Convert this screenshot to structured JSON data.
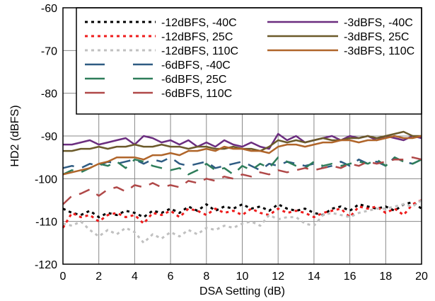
{
  "chart_data": {
    "type": "line",
    "title": "",
    "xlabel": "DSA Setting (dB)",
    "ylabel": "HD2 (dBFS)",
    "xlim": [
      0,
      20
    ],
    "ylim": [
      -120,
      -60
    ],
    "xticks": [
      "0",
      "2",
      "4",
      "6",
      "8",
      "10",
      "12",
      "14",
      "16",
      "18",
      "20"
    ],
    "yticks": [
      "-60",
      "-70",
      "-80",
      "-90",
      "-100",
      "-110",
      "-120"
    ],
    "grid": true,
    "legend_position": "top-right",
    "series": [
      {
        "name": "-12dBFS, -40C",
        "color": "#000000",
        "dash": "dotted",
        "x": [
          0,
          0.5,
          1,
          1.5,
          2,
          2.5,
          3,
          3.5,
          4,
          4.5,
          5,
          5.5,
          6,
          6.5,
          7,
          7.5,
          8,
          8.5,
          9,
          9.5,
          10,
          10.5,
          11,
          11.5,
          12,
          12.5,
          13,
          13.5,
          14,
          14.5,
          15,
          15.5,
          16,
          16.5,
          17,
          17.5,
          18,
          18.5,
          19,
          19.5,
          20
        ],
        "y": [
          -107,
          -108,
          -108.5,
          -107.5,
          -109,
          -108,
          -108.5,
          -107.5,
          -108,
          -109,
          -107.5,
          -108,
          -107,
          -108,
          -106.5,
          -107.5,
          -106,
          -107.5,
          -106.5,
          -107,
          -106,
          -107,
          -106.5,
          -107.5,
          -106,
          -107,
          -107.5,
          -107,
          -108,
          -108.5,
          -107,
          -106.5,
          -107.5,
          -106,
          -106.5,
          -107,
          -106.5,
          -107.5,
          -106,
          -105.5,
          -107
        ]
      },
      {
        "name": "-12dBFS, 25C",
        "color": "#ee1c1c",
        "dash": "dotted",
        "x": [
          0,
          0.5,
          1,
          1.5,
          2,
          2.5,
          3,
          3.5,
          4,
          4.5,
          5,
          5.5,
          6,
          6.5,
          7,
          7.5,
          8,
          8.5,
          9,
          9.5,
          10,
          10.5,
          11,
          11.5,
          12,
          12.5,
          13,
          13.5,
          14,
          14.5,
          15,
          15.5,
          16,
          16.5,
          17,
          17.5,
          18,
          18.5,
          19,
          19.5,
          20
        ],
        "y": [
          -111.5,
          -108,
          -109,
          -108.5,
          -110,
          -108.5,
          -108,
          -109,
          -108.5,
          -110.5,
          -108,
          -108.5,
          -107.5,
          -109,
          -107,
          -107.5,
          -108.5,
          -107,
          -108,
          -107.5,
          -108.5,
          -107,
          -108,
          -108.5,
          -107,
          -108,
          -107.5,
          -108,
          -109,
          -108,
          -107.5,
          -107,
          -109,
          -106.5,
          -107,
          -106.5,
          -108,
          -107,
          -108.5,
          -106,
          -105
        ]
      },
      {
        "name": "-12dBFS, 110C",
        "color": "#c0c0c0",
        "dash": "dotted",
        "x": [
          0,
          0.5,
          1,
          1.5,
          2,
          2.5,
          3,
          3.5,
          4,
          4.5,
          5,
          5.5,
          6,
          6.5,
          7,
          7.5,
          8,
          8.5,
          9,
          9.5,
          10,
          10.5,
          11,
          11.5,
          12,
          12.5,
          13,
          13.5,
          14,
          14.5,
          15,
          15.5,
          16,
          16.5,
          17,
          17.5,
          18,
          18.5,
          19,
          19.5,
          20
        ],
        "y": [
          -110.5,
          -111,
          -110,
          -112,
          -113.5,
          -112,
          -113,
          -111.5,
          -112.5,
          -115,
          -113,
          -114,
          -112.5,
          -113.5,
          -112,
          -113,
          -111.5,
          -112,
          -111,
          -111.5,
          -110.5,
          -110,
          -111,
          -108.5,
          -109.5,
          -109,
          -109,
          -110.5,
          -111,
          -108.5,
          -108,
          -108.5,
          -109,
          -108,
          -107.5,
          -107,
          -107,
          -106.5,
          -106,
          -106.5,
          -105
        ]
      },
      {
        "name": "-6dBFS, -40C",
        "color": "#2e5b82",
        "dash": "dashed",
        "x": [
          0,
          0.5,
          1,
          1.5,
          2,
          2.5,
          3,
          3.5,
          4,
          4.5,
          5,
          5.5,
          6,
          6.5,
          7,
          7.5,
          8,
          8.5,
          9,
          9.5,
          10,
          10.5,
          11,
          11.5,
          12,
          12.5,
          13,
          13.5,
          14,
          14.5,
          15,
          15.5,
          16,
          16.5,
          17,
          17.5,
          18,
          18.5,
          19,
          19.5,
          20
        ],
        "y": [
          -97.5,
          -97,
          -97.5,
          -96.5,
          -97,
          -96,
          -96.5,
          -96,
          -95.5,
          -96.5,
          -95.5,
          -96,
          -95,
          -96.5,
          -97,
          -96.5,
          -96,
          -97.5,
          -97,
          -96.5,
          -96,
          -97,
          -98,
          -96.5,
          -97,
          -96,
          -96.5,
          -97,
          -96.5,
          -97.5,
          -97,
          -96,
          -97,
          -95.5,
          -96.5,
          -96,
          -97,
          -95,
          -96,
          -96.5,
          -95.5
        ]
      },
      {
        "name": "-6dBFS, 25C",
        "color": "#2e7d5a",
        "dash": "dashed",
        "x": [
          0,
          0.5,
          1,
          1.5,
          2,
          2.5,
          3,
          3.5,
          4,
          4.5,
          5,
          5.5,
          6,
          6.5,
          7,
          7.5,
          8,
          8.5,
          9,
          9.5,
          10,
          10.5,
          11,
          11.5,
          12,
          12.5,
          13,
          13.5,
          14,
          14.5,
          15,
          15.5,
          16,
          16.5,
          17,
          17.5,
          18,
          18.5,
          19,
          19.5,
          20
        ],
        "y": [
          -99,
          -98,
          -98.5,
          -97.5,
          -96.5,
          -97,
          -96,
          -97.5,
          -95.5,
          -96,
          -97,
          -97.5,
          -98,
          -97.5,
          -99,
          -98,
          -96.5,
          -98,
          -97.5,
          -99,
          -97,
          -98,
          -96.5,
          -97.5,
          -95,
          -96,
          -97,
          -97.5,
          -96,
          -97,
          -96.5,
          -97,
          -96.5,
          -96,
          -96.5,
          -95.5,
          -97,
          -95,
          -96,
          -96.5,
          -95.5
        ]
      },
      {
        "name": "-6dBFS, 110C",
        "color": "#b04848",
        "dash": "dashed",
        "x": [
          0,
          0.5,
          1,
          1.5,
          2,
          2.5,
          3,
          3.5,
          4,
          4.5,
          5,
          5.5,
          6,
          6.5,
          7,
          7.5,
          8,
          8.5,
          9,
          9.5,
          10,
          10.5,
          11,
          11.5,
          12,
          12.5,
          13,
          13.5,
          14,
          14.5,
          15,
          15.5,
          16,
          16.5,
          17,
          17.5,
          18,
          18.5,
          19,
          19.5,
          20
        ],
        "y": [
          -106,
          -104,
          -103.5,
          -102.5,
          -104,
          -102.5,
          -102,
          -103,
          -101.5,
          -102,
          -101,
          -102,
          -101.5,
          -102,
          -100.5,
          -101,
          -100,
          -100.5,
          -99.5,
          -100,
          -99,
          -99.5,
          -98.5,
          -99,
          -98,
          -98.5,
          -98,
          -97.5,
          -98,
          -97.5,
          -97,
          -97.5,
          -96.5,
          -97,
          -96,
          -96.5,
          -96,
          -95.5,
          -95.5,
          -95,
          -95.5
        ]
      },
      {
        "name": "-3dBFS, -40C",
        "color": "#6b2d7f",
        "dash": "solid",
        "x": [
          0,
          0.5,
          1,
          1.5,
          2,
          2.5,
          3,
          3.5,
          4,
          4.5,
          5,
          5.5,
          6,
          6.5,
          7,
          7.5,
          8,
          8.5,
          9,
          9.5,
          10,
          10.5,
          11,
          11.5,
          12,
          12.5,
          13,
          13.5,
          14,
          14.5,
          15,
          15.5,
          16,
          16.5,
          17,
          17.5,
          18,
          18.5,
          19,
          19.5,
          20
        ],
        "y": [
          -92,
          -92,
          -91.5,
          -91,
          -92,
          -91.5,
          -91,
          -90.5,
          -92,
          -90,
          -90.5,
          -91.5,
          -91,
          -92,
          -91,
          -92.5,
          -91.5,
          -92.5,
          -91,
          -92,
          -92.5,
          -91.5,
          -92.5,
          -93,
          -89.5,
          -91,
          -90,
          -91.5,
          -91,
          -90.5,
          -90,
          -91,
          -90,
          -90.5,
          -90,
          -91,
          -90,
          -90.5,
          -91,
          -90,
          -90.5
        ]
      },
      {
        "name": "-3dBFS, 25C",
        "color": "#6b5a2a",
        "dash": "solid",
        "x": [
          0,
          0.5,
          1,
          1.5,
          2,
          2.5,
          3,
          3.5,
          4,
          4.5,
          5,
          5.5,
          6,
          6.5,
          7,
          7.5,
          8,
          8.5,
          9,
          9.5,
          10,
          10.5,
          11,
          11.5,
          12,
          12.5,
          13,
          13.5,
          14,
          14.5,
          15,
          15.5,
          16,
          16.5,
          17,
          17.5,
          18,
          18.5,
          19,
          19.5,
          20
        ],
        "y": [
          -93.5,
          -93.5,
          -93,
          -93,
          -92.5,
          -93,
          -92.5,
          -92.5,
          -92,
          -92.5,
          -92.5,
          -92,
          -92.5,
          -92.5,
          -93,
          -92.5,
          -92.5,
          -93,
          -93,
          -92.5,
          -93,
          -93,
          -93.5,
          -92.5,
          -91,
          -91.5,
          -91,
          -91.5,
          -91,
          -90.5,
          -91,
          -91,
          -90.5,
          -90.5,
          -90,
          -90.5,
          -90,
          -89.5,
          -89,
          -90,
          -90
        ]
      },
      {
        "name": "-3dBFS, 110C",
        "color": "#b0652a",
        "dash": "solid",
        "x": [
          0,
          0.5,
          1,
          1.5,
          2,
          2.5,
          3,
          3.5,
          4,
          4.5,
          5,
          5.5,
          6,
          6.5,
          7,
          7.5,
          8,
          8.5,
          9,
          9.5,
          10,
          10.5,
          11,
          11.5,
          12,
          12.5,
          13,
          13.5,
          14,
          14.5,
          15,
          15.5,
          16,
          16.5,
          17,
          17.5,
          18,
          18.5,
          19,
          19.5,
          20
        ],
        "y": [
          -99,
          -98.5,
          -98,
          -97.5,
          -96.5,
          -96,
          -95,
          -95,
          -95,
          -95.5,
          -94.5,
          -94.5,
          -94,
          -94.5,
          -93.5,
          -93.5,
          -93,
          -93.5,
          -92.5,
          -93,
          -93,
          -93.5,
          -93.5,
          -94,
          -92.5,
          -92,
          -92,
          -92.5,
          -92,
          -91.5,
          -91.5,
          -91,
          -91,
          -91.5,
          -91,
          -91,
          -90.5,
          -90,
          -90.5,
          -90.5,
          -90
        ]
      }
    ]
  }
}
